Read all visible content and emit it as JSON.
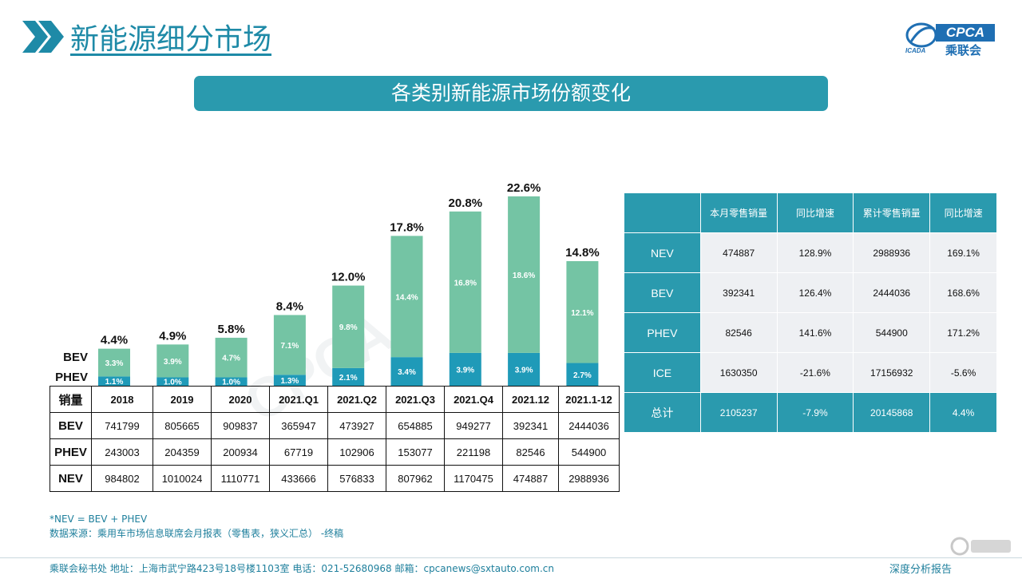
{
  "page_title": "新能源细分市场",
  "logo": {
    "brand": "CPCA",
    "brand_cn": "乘联会",
    "mark_caption": "ICADA"
  },
  "banner_title": "各类别新能源市场份额变化",
  "colors": {
    "accent": "#2a9aae",
    "bev": "#74c4a4",
    "phev": "#1f9ab8",
    "title": "#1e8aa7"
  },
  "chart_data": {
    "type": "bar",
    "stacked": true,
    "categories": [
      "2018",
      "2019",
      "2020",
      "2021.Q1",
      "2021.Q2",
      "2021.Q3",
      "2021.Q4",
      "2021.12",
      "2021.1-12"
    ],
    "series": [
      {
        "name": "PHEV",
        "values": [
          1.1,
          1.0,
          1.0,
          1.3,
          2.1,
          3.4,
          3.9,
          3.9,
          2.7
        ],
        "labels": [
          "1.1%",
          "1.0%",
          "1.0%",
          "1.3%",
          "2.1%",
          "3.4%",
          "3.9%",
          "3.9%",
          "2.7%"
        ]
      },
      {
        "name": "BEV",
        "values": [
          3.3,
          3.9,
          4.7,
          7.1,
          9.8,
          14.4,
          16.8,
          18.6,
          12.1
        ],
        "labels": [
          "3.3%",
          "3.9%",
          "4.7%",
          "7.1%",
          "9.8%",
          "14.4%",
          "16.8%",
          "18.6%",
          "12.1%"
        ]
      }
    ],
    "totals": [
      4.4,
      4.9,
      5.8,
      8.4,
      12.0,
      17.8,
      20.8,
      22.6,
      14.8
    ],
    "total_labels": [
      "4.4%",
      "4.9%",
      "5.8%",
      "8.4%",
      "12.0%",
      "17.8%",
      "20.8%",
      "22.6%",
      "14.8%"
    ],
    "legend": [
      "BEV",
      "PHEV"
    ],
    "ylim": [
      0,
      25
    ]
  },
  "volume_table": {
    "header_label": "销量",
    "rows": [
      {
        "label": "BEV",
        "values": [
          "741799",
          "805665",
          "909837",
          "365947",
          "473927",
          "654885",
          "949277",
          "392341",
          "2444036"
        ]
      },
      {
        "label": "PHEV",
        "values": [
          "243003",
          "204359",
          "200934",
          "67719",
          "102906",
          "153077",
          "221198",
          "82546",
          "544900"
        ]
      },
      {
        "label": "NEV",
        "values": [
          "984802",
          "1010024",
          "1110771",
          "433666",
          "576833",
          "807962",
          "1170475",
          "474887",
          "2988936"
        ]
      }
    ]
  },
  "summary_table": {
    "headers": [
      "",
      "本月零售销量",
      "同比增速",
      "累计零售销量",
      "同比增速"
    ],
    "rows": [
      {
        "label": "NEV",
        "values": [
          "474887",
          "128.9%",
          "2988936",
          "169.1%"
        ]
      },
      {
        "label": "BEV",
        "values": [
          "392341",
          "126.4%",
          "2444036",
          "168.6%"
        ]
      },
      {
        "label": "PHEV",
        "values": [
          "82546",
          "141.6%",
          "544900",
          "171.2%"
        ]
      },
      {
        "label": "ICE",
        "values": [
          "1630350",
          "-21.6%",
          "17156932",
          "-5.6%"
        ]
      },
      {
        "label": "总计",
        "values": [
          "2105237",
          "-7.9%",
          "20145868",
          "4.4%"
        ]
      }
    ]
  },
  "notes": {
    "formula": "*NEV = BEV + PHEV",
    "source": "数据来源：乘用车市场信息联席会月报表（零售表，狭义汇总） -终稿"
  },
  "footer": {
    "info": "乘联会秘书处 地址：上海市武宁路423号18号楼1103室 电话：021-52680968 邮箱：cpcanews@sxtauto.com.cn",
    "tagline": "深度分析报告"
  }
}
